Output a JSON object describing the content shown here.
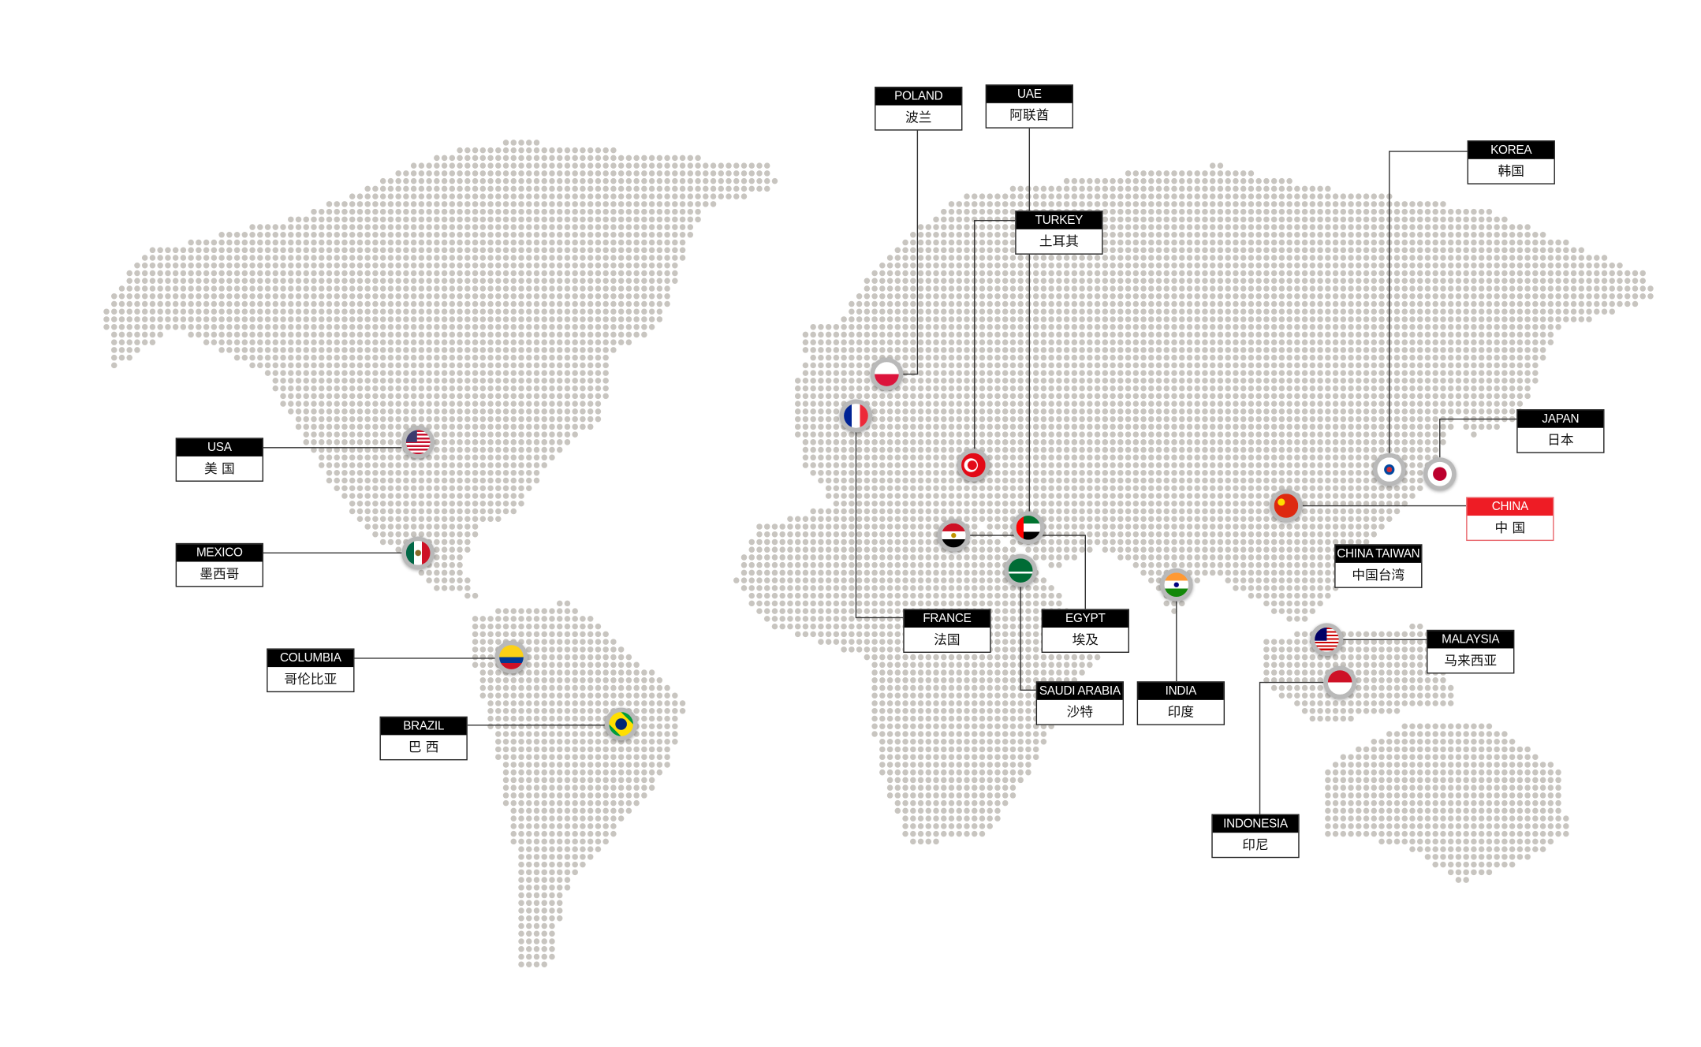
{
  "map": {
    "dot_color": "#c8c5c0",
    "line_color": "#333333",
    "highlight_color": "#ee1c25"
  },
  "locations": [
    {
      "id": "usa",
      "en": "USA",
      "cn": "美 国",
      "flag": "us-flag-icon"
    },
    {
      "id": "mexico",
      "en": "MEXICO",
      "cn": "墨西哥",
      "flag": "mexico-flag-icon"
    },
    {
      "id": "columbia",
      "en": "COLUMBIA",
      "cn": "哥伦比亚",
      "flag": "colombia-flag-icon"
    },
    {
      "id": "brazil",
      "en": "BRAZIL",
      "cn": "巴 西",
      "flag": "brazil-flag-icon"
    },
    {
      "id": "poland",
      "en": "POLAND",
      "cn": "波兰",
      "flag": "poland-flag-icon"
    },
    {
      "id": "uae",
      "en": "UAE",
      "cn": "阿联酋",
      "flag": "uae-flag-icon"
    },
    {
      "id": "turkey",
      "en": "TURKEY",
      "cn": "土耳其",
      "flag": "turkey-flag-icon"
    },
    {
      "id": "france",
      "en": "FRANCE",
      "cn": "法国",
      "flag": "france-flag-icon"
    },
    {
      "id": "egypt",
      "en": "EGYPT",
      "cn": "埃及",
      "flag": "egypt-flag-icon"
    },
    {
      "id": "saudi",
      "en": "SAUDI ARABIA",
      "cn": "沙特",
      "flag": "saudi-flag-icon"
    },
    {
      "id": "india",
      "en": "INDIA",
      "cn": "印度",
      "flag": "india-flag-icon"
    },
    {
      "id": "korea",
      "en": "KOREA",
      "cn": "韩国",
      "flag": "korea-flag-icon"
    },
    {
      "id": "japan",
      "en": "JAPAN",
      "cn": "日本",
      "flag": "japan-flag-icon"
    },
    {
      "id": "china",
      "en": "CHINA",
      "cn": "中 国",
      "flag": "china-flag-icon",
      "highlight": true
    },
    {
      "id": "taiwan",
      "en": "CHINA TAIWAN",
      "cn": "中国台湾"
    },
    {
      "id": "malaysia",
      "en": "MALAYSIA",
      "cn": "马来西亚",
      "flag": "malaysia-flag-icon"
    },
    {
      "id": "indonesia",
      "en": "INDONESIA",
      "cn": "印尼",
      "flag": "indonesia-flag-icon"
    }
  ]
}
